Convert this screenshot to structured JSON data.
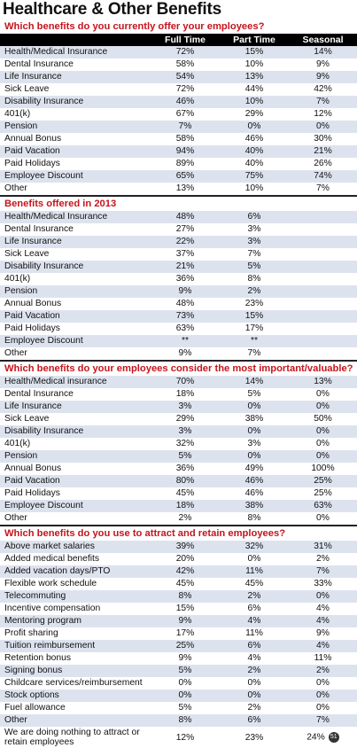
{
  "title": "Healthcare & Other Benefits",
  "columns": [
    "Full Time",
    "Part Time",
    "Seasonal"
  ],
  "sections": [
    {
      "question": "Which benefits do you currently offer your employees?",
      "show_header": true,
      "rows": [
        [
          "Health/Medical Insurance",
          "72%",
          "15%",
          "14%"
        ],
        [
          "Dental Insurance",
          "58%",
          "10%",
          "9%"
        ],
        [
          "Life Insurance",
          "54%",
          "13%",
          "9%"
        ],
        [
          "Sick Leave",
          "72%",
          "44%",
          "42%"
        ],
        [
          "Disability Insurance",
          "46%",
          "10%",
          "7%"
        ],
        [
          "401(k)",
          "67%",
          "29%",
          "12%"
        ],
        [
          "Pension",
          "7%",
          "0%",
          "0%"
        ],
        [
          "Annual Bonus",
          "58%",
          "46%",
          "30%"
        ],
        [
          "Paid Vacation",
          "94%",
          "40%",
          "21%"
        ],
        [
          "Paid Holidays",
          "89%",
          "40%",
          "26%"
        ],
        [
          "Employee Discount",
          "65%",
          "75%",
          "74%"
        ],
        [
          "Other",
          "13%",
          "10%",
          "7%"
        ]
      ]
    },
    {
      "question": "Benefits offered in 2013",
      "show_header": false,
      "rows": [
        [
          "Health/Medical Insurance",
          "48%",
          "6%",
          ""
        ],
        [
          "Dental Insurance",
          "27%",
          "3%",
          ""
        ],
        [
          "Life Insurance",
          "22%",
          "3%",
          ""
        ],
        [
          "Sick Leave",
          "37%",
          "7%",
          ""
        ],
        [
          "Disability Insurance",
          "21%",
          "5%",
          ""
        ],
        [
          "401(k)",
          "36%",
          "8%",
          ""
        ],
        [
          "Pension",
          "9%",
          "2%",
          ""
        ],
        [
          "Annual Bonus",
          "48%",
          "23%",
          ""
        ],
        [
          "Paid Vacation",
          "73%",
          "15%",
          ""
        ],
        [
          "Paid Holidays",
          "63%",
          "17%",
          ""
        ],
        [
          "Employee Discount",
          "**",
          "**",
          ""
        ],
        [
          "Other",
          "9%",
          "7%",
          ""
        ]
      ]
    },
    {
      "question": "Which benefits do your employees consider the most important/valuable?",
      "show_header": false,
      "rows": [
        [
          "Health/Medical insurance",
          "70%",
          "14%",
          "13%"
        ],
        [
          "Dental Insurance",
          "18%",
          "5%",
          "0%"
        ],
        [
          "Life Insurance",
          "3%",
          "0%",
          "0%"
        ],
        [
          "Sick Leave",
          "29%",
          "38%",
          "50%"
        ],
        [
          "Disability Insurance",
          "3%",
          "0%",
          "0%"
        ],
        [
          "401(k)",
          "32%",
          "3%",
          "0%"
        ],
        [
          "Pension",
          "5%",
          "0%",
          "0%"
        ],
        [
          "Annual Bonus",
          "36%",
          "49%",
          "100%"
        ],
        [
          "Paid Vacation",
          "80%",
          "46%",
          "25%"
        ],
        [
          "Paid Holidays",
          "45%",
          "46%",
          "25%"
        ],
        [
          "Employee Discount",
          "18%",
          "38%",
          "63%"
        ],
        [
          "Other",
          "2%",
          "8%",
          "0%"
        ]
      ]
    },
    {
      "question": "Which benefits do you use to attract and retain employees?",
      "show_header": false,
      "rows": [
        [
          "Above market salaries",
          "39%",
          "32%",
          "31%"
        ],
        [
          "Added medical benefits",
          "20%",
          "0%",
          "2%"
        ],
        [
          "Added vacation days/PTO",
          "42%",
          "11%",
          "7%"
        ],
        [
          "Flexible work schedule",
          "45%",
          "45%",
          "33%"
        ],
        [
          "Telecommuting",
          "8%",
          "2%",
          "0%"
        ],
        [
          "Incentive compensation",
          "15%",
          "6%",
          "4%"
        ],
        [
          "Mentoring program",
          "9%",
          "4%",
          "4%"
        ],
        [
          "Profit sharing",
          "17%",
          "11%",
          "9%"
        ],
        [
          "Tuition reimbursement",
          "25%",
          "6%",
          "4%"
        ],
        [
          "Retention bonus",
          "9%",
          "4%",
          "11%"
        ],
        [
          "Signing bonus",
          "5%",
          "2%",
          "2%"
        ],
        [
          "Childcare services/reimbursement",
          "0%",
          "0%",
          "0%"
        ],
        [
          "Stock options",
          "0%",
          "0%",
          "0%"
        ],
        [
          "Fuel allowance",
          "5%",
          "2%",
          "0%"
        ],
        [
          "Other",
          "8%",
          "6%",
          "7%"
        ],
        [
          "We are doing nothing to attract or retain employees",
          "12%",
          "23%",
          "24%"
        ]
      ]
    }
  ],
  "page_badge": "51"
}
